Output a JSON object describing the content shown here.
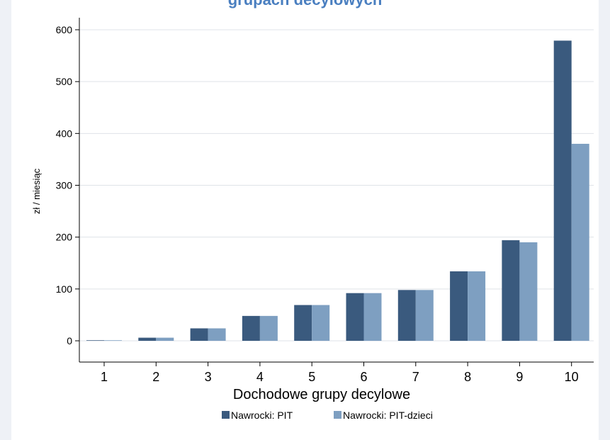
{
  "chart_data": {
    "type": "bar",
    "title": "grupach decylowych",
    "xlabel": "Dochodowe grupy decylowe",
    "ylabel": "zł / miesiąc",
    "categories": [
      "1",
      "2",
      "3",
      "4",
      "5",
      "6",
      "7",
      "8",
      "9",
      "10"
    ],
    "ylim": [
      0,
      600
    ],
    "yticks": [
      0,
      100,
      200,
      300,
      400,
      500,
      600
    ],
    "grid": true,
    "legend_position": "bottom",
    "series": [
      {
        "name": "Nawrocki: PIT",
        "color": "#3a5a7e",
        "values": [
          1,
          6,
          24,
          48,
          69,
          92,
          98,
          134,
          194,
          579
        ]
      },
      {
        "name": "Nawrocki: PIT-dzieci",
        "color": "#7e9fc1",
        "values": [
          1,
          6,
          24,
          48,
          69,
          92,
          98,
          134,
          190,
          380
        ]
      }
    ]
  }
}
